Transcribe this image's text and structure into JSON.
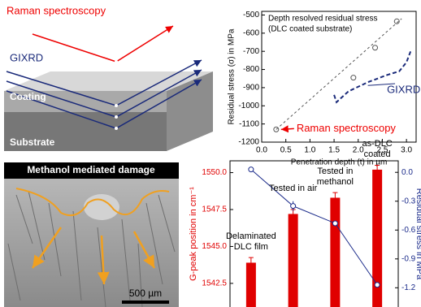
{
  "diagram": {
    "raman": "Raman spectroscopy",
    "gixrd": "GIXRD",
    "coating": "Coating",
    "substrate": "Substrate"
  },
  "image": {
    "title": "Methanol mediated damage",
    "scale": "500 µm"
  },
  "chart_data": [
    {
      "type": "scatter",
      "title": "Depth resolved residual stress",
      "subtitle": "(DLC coated substrate)",
      "xlabel": "Penetration depth (t) in µm",
      "ylabel": "Residual stress (σ) in MPa",
      "annotation": "Raman spectroscopy",
      "xlim": [
        0,
        3.2
      ],
      "xticks": [
        {
          "value": 0,
          "label": "0.0"
        },
        {
          "value": 0.5,
          "label": "0.5"
        },
        {
          "value": 1,
          "label": "1.0"
        },
        {
          "value": 1.5,
          "label": "1.5"
        },
        {
          "value": 2,
          "label": "2.0"
        },
        {
          "value": 2.5,
          "label": "2.5"
        },
        {
          "value": 3,
          "label": "3.0"
        }
      ],
      "ylim": [
        -1200,
        -480
      ],
      "yticks": [
        -1200,
        -1100,
        -1000,
        -900,
        -800,
        -700,
        -600,
        -500
      ],
      "series": [
        {
          "color": "#555555",
          "marker": "circle",
          "x": [
            0.3,
            1.9,
            2.35,
            2.8
          ],
          "values": [
            -1130,
            -845,
            -680,
            -535
          ]
        },
        {
          "color": "#555555",
          "line": "dash",
          "x": [
            0.3,
            2.9
          ],
          "values": [
            -1130,
            -520
          ]
        },
        {
          "name": "GIXRD",
          "color": "#1a2a7a",
          "line": "dash",
          "x": [
            1.5,
            1.55,
            1.8,
            2.2,
            2.6,
            2.85,
            3.0,
            3.1
          ],
          "values": [
            -940,
            -980,
            -920,
            -870,
            -830,
            -810,
            -760,
            -690
          ]
        }
      ]
    },
    {
      "type": "bar",
      "ylabel": "G-peak position in cm⁻¹",
      "y2label": "Residual stress in MPa",
      "categories": [
        "Delaminated DLC film",
        "Tested in air",
        "Tested in methanol",
        "as-DLC coated"
      ],
      "ylim": [
        1540.9,
        1550.8
      ],
      "yticks": [
        {
          "value": 1542.5,
          "label": "1542.5"
        },
        {
          "value": 1545,
          "label": "1545.0"
        },
        {
          "value": 1547.5,
          "label": "1547.5"
        },
        {
          "value": 1550,
          "label": "1550.0"
        }
      ],
      "y2lim": [
        -1.4,
        0.12
      ],
      "y2ticks": [
        {
          "value": -1.2,
          "label": "-1.2"
        },
        {
          "value": -0.9,
          "label": "-0.9"
        },
        {
          "value": -0.6,
          "label": "-0.6"
        },
        {
          "value": -0.3,
          "label": "-0.3"
        },
        {
          "value": 0,
          "label": "0.0"
        }
      ],
      "series": [
        {
          "color": "#e00000",
          "values": [
            1543.9,
            1547.2,
            1548.3,
            1550.2
          ],
          "errors": [
            0.35,
            0.3,
            0.35,
            0.3
          ]
        },
        {
          "axis": "y2",
          "color": "#1a2a8a",
          "values": [
            0.03,
            -0.35,
            -0.53,
            -1.17
          ],
          "errors": [
            0,
            0.05,
            0,
            0
          ]
        }
      ]
    }
  ]
}
